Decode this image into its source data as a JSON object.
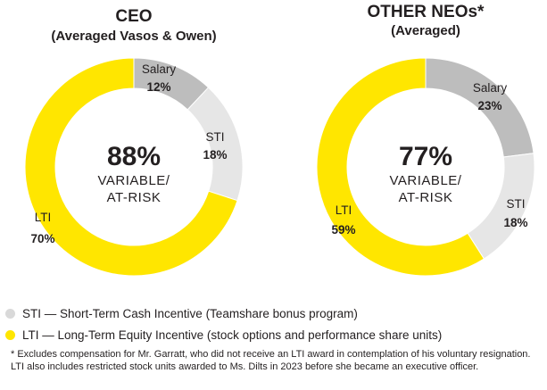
{
  "colors": {
    "salary": "#bdbdbd",
    "sti": "#e6e6e6",
    "lti": "#ffe600",
    "text": "#231f20",
    "dot_sti": "#d9d9d9",
    "dot_lti": "#ffe600"
  },
  "chart_data": [
    {
      "type": "pie",
      "variant": "donut",
      "title": "CEO",
      "subtitle": "(Averaged Vasos & Owen)",
      "center": {
        "value": "88%",
        "line1": "VARIABLE/",
        "line2": "AT-RISK"
      },
      "slices": [
        {
          "name": "Salary",
          "value": 12,
          "label": "12%",
          "color": "#bdbdbd"
        },
        {
          "name": "STI",
          "value": 18,
          "label": "18%",
          "color": "#e6e6e6"
        },
        {
          "name": "LTI",
          "value": 70,
          "label": "70%",
          "color": "#ffe600"
        }
      ]
    },
    {
      "type": "pie",
      "variant": "donut",
      "title": "OTHER NEOs*",
      "subtitle": "(Averaged)",
      "center": {
        "value": "77%",
        "line1": "VARIABLE/",
        "line2": "AT-RISK"
      },
      "slices": [
        {
          "name": "Salary",
          "value": 23,
          "label": "23%",
          "color": "#bdbdbd"
        },
        {
          "name": "STI",
          "value": 18,
          "label": "18%",
          "color": "#e6e6e6"
        },
        {
          "name": "LTI",
          "value": 59,
          "label": "59%",
          "color": "#ffe600"
        }
      ]
    }
  ],
  "legend": {
    "sti": "STI — Short-Term Cash Incentive (Teamshare bonus program)",
    "lti": "LTI — Long-Term Equity Incentive (stock options and performance share units)"
  },
  "footnote": "* Excludes compensation for Mr. Garratt, who did not receive an LTI award in contemplation of his voluntary resignation. LTI also includes restricted stock units awarded to Ms. Dilts in 2023 before she became an executive officer."
}
